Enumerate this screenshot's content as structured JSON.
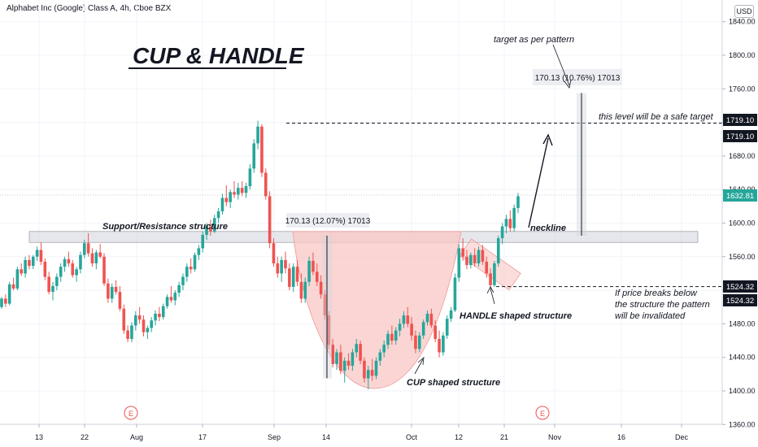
{
  "header": {
    "symbol_line": "Alphabet Inc (Google) Class A, 4h, Cboe BZX"
  },
  "currency": "USD",
  "title": "CUP & HANDLE",
  "annotations": {
    "target": "target as per pattern",
    "safe_target": "this level will be a safe target",
    "support_resistance": "Support/Resistance structure",
    "neckline": "neckline",
    "invalidation": [
      "If price breaks below",
      "the structure the pattern",
      "will be invalidated"
    ],
    "handle": "HANDLE shaped structure",
    "cup": "CUP shaped structure",
    "measure_left": "170.13 (12.07%) 17013",
    "measure_right": "170.13 (10.76%) 17013"
  },
  "price_tags": {
    "safe_target_a": "1719.10",
    "safe_target_b": "1719.10",
    "last": "1632.81",
    "invalid_a": "1524.32",
    "invalid_b": "1524.32"
  },
  "event_marker": "E",
  "chart_data": {
    "type": "candlestick",
    "y_ticks": [
      1360,
      1400,
      1440,
      1480,
      1520,
      1560,
      1600,
      1640,
      1680,
      1720,
      1760,
      1800,
      1840
    ],
    "y_tick_labels": [
      "1360.00",
      "1400.00",
      "1440.00",
      "1480.00",
      "1520.00",
      "1560.00",
      "1600.00",
      "1640.00",
      "1680.00",
      "1720.00",
      "1760.00",
      "1800.00",
      "1840.00"
    ],
    "x_tick_labels": [
      "13",
      "22",
      "Aug",
      "17",
      "Sep",
      "14",
      "Oct",
      "12",
      "21",
      "Nov",
      "16",
      "Dec"
    ],
    "colors": {
      "up": "#26a69a",
      "down": "#ef5350",
      "zone": "#d1d4dc",
      "cup": "#f8c7c4"
    },
    "levels": {
      "safe_target": 1719.1,
      "invalidation": 1524.32,
      "last": 1632.81,
      "resistance_zone": [
        1577,
        1590
      ]
    },
    "candles": [
      [
        1500,
        1512,
        1498,
        1510
      ],
      [
        1510,
        1515,
        1500,
        1504
      ],
      [
        1504,
        1530,
        1502,
        1527
      ],
      [
        1527,
        1535,
        1520,
        1522
      ],
      [
        1522,
        1548,
        1520,
        1545
      ],
      [
        1545,
        1552,
        1537,
        1540
      ],
      [
        1540,
        1560,
        1535,
        1556
      ],
      [
        1556,
        1562,
        1545,
        1549
      ],
      [
        1549,
        1562,
        1545,
        1560
      ],
      [
        1560,
        1572,
        1555,
        1568
      ],
      [
        1568,
        1577,
        1550,
        1554
      ],
      [
        1554,
        1558,
        1532,
        1536
      ],
      [
        1536,
        1542,
        1515,
        1518
      ],
      [
        1518,
        1530,
        1508,
        1525
      ],
      [
        1525,
        1540,
        1520,
        1536
      ],
      [
        1536,
        1552,
        1530,
        1548
      ],
      [
        1548,
        1560,
        1542,
        1557
      ],
      [
        1557,
        1566,
        1548,
        1552
      ],
      [
        1552,
        1556,
        1535,
        1538
      ],
      [
        1538,
        1548,
        1530,
        1545
      ],
      [
        1545,
        1566,
        1540,
        1562
      ],
      [
        1562,
        1580,
        1558,
        1576
      ],
      [
        1576,
        1588,
        1560,
        1564
      ],
      [
        1564,
        1570,
        1548,
        1552
      ],
      [
        1552,
        1568,
        1545,
        1565
      ],
      [
        1565,
        1575,
        1558,
        1560
      ],
      [
        1560,
        1564,
        1525,
        1528
      ],
      [
        1528,
        1534,
        1505,
        1510
      ],
      [
        1510,
        1528,
        1505,
        1524
      ],
      [
        1524,
        1532,
        1515,
        1518
      ],
      [
        1518,
        1525,
        1495,
        1498
      ],
      [
        1498,
        1503,
        1468,
        1472
      ],
      [
        1472,
        1478,
        1458,
        1462
      ],
      [
        1462,
        1482,
        1458,
        1478
      ],
      [
        1478,
        1495,
        1472,
        1490
      ],
      [
        1490,
        1500,
        1480,
        1485
      ],
      [
        1485,
        1490,
        1465,
        1470
      ],
      [
        1470,
        1478,
        1462,
        1475
      ],
      [
        1475,
        1488,
        1470,
        1484
      ],
      [
        1484,
        1496,
        1478,
        1492
      ],
      [
        1492,
        1500,
        1483,
        1488
      ],
      [
        1488,
        1504,
        1485,
        1501
      ],
      [
        1501,
        1515,
        1498,
        1512
      ],
      [
        1512,
        1525,
        1505,
        1508
      ],
      [
        1508,
        1520,
        1502,
        1517
      ],
      [
        1517,
        1530,
        1512,
        1526
      ],
      [
        1526,
        1540,
        1520,
        1536
      ],
      [
        1536,
        1552,
        1530,
        1548
      ],
      [
        1548,
        1558,
        1540,
        1545
      ],
      [
        1545,
        1565,
        1542,
        1562
      ],
      [
        1562,
        1574,
        1556,
        1570
      ],
      [
        1570,
        1590,
        1565,
        1586
      ],
      [
        1586,
        1600,
        1580,
        1596
      ],
      [
        1596,
        1604,
        1585,
        1590
      ],
      [
        1590,
        1610,
        1588,
        1606
      ],
      [
        1606,
        1618,
        1600,
        1614
      ],
      [
        1614,
        1635,
        1610,
        1630
      ],
      [
        1630,
        1645,
        1620,
        1625
      ],
      [
        1625,
        1640,
        1618,
        1637
      ],
      [
        1637,
        1650,
        1630,
        1634
      ],
      [
        1634,
        1648,
        1628,
        1642
      ],
      [
        1642,
        1650,
        1632,
        1636
      ],
      [
        1636,
        1648,
        1630,
        1644
      ],
      [
        1644,
        1670,
        1640,
        1665
      ],
      [
        1665,
        1700,
        1660,
        1695
      ],
      [
        1695,
        1722,
        1688,
        1715
      ],
      [
        1715,
        1718,
        1655,
        1660
      ],
      [
        1660,
        1665,
        1628,
        1632
      ],
      [
        1632,
        1638,
        1570,
        1576
      ],
      [
        1576,
        1582,
        1548,
        1552
      ],
      [
        1552,
        1560,
        1535,
        1540
      ],
      [
        1540,
        1560,
        1530,
        1556
      ],
      [
        1556,
        1566,
        1540,
        1546
      ],
      [
        1546,
        1552,
        1520,
        1524
      ],
      [
        1524,
        1552,
        1518,
        1548
      ],
      [
        1548,
        1556,
        1525,
        1530
      ],
      [
        1530,
        1540,
        1505,
        1510
      ],
      [
        1510,
        1535,
        1505,
        1530
      ],
      [
        1530,
        1560,
        1525,
        1555
      ],
      [
        1555,
        1565,
        1538,
        1542
      ],
      [
        1542,
        1552,
        1525,
        1530
      ],
      [
        1530,
        1538,
        1510,
        1515
      ],
      [
        1515,
        1520,
        1485,
        1490
      ],
      [
        1490,
        1495,
        1450,
        1455
      ],
      [
        1455,
        1462,
        1428,
        1432
      ],
      [
        1432,
        1450,
        1425,
        1446
      ],
      [
        1446,
        1455,
        1420,
        1424
      ],
      [
        1424,
        1440,
        1410,
        1436
      ],
      [
        1436,
        1445,
        1425,
        1430
      ],
      [
        1430,
        1450,
        1424,
        1446
      ],
      [
        1446,
        1462,
        1440,
        1456
      ],
      [
        1456,
        1460,
        1432,
        1436
      ],
      [
        1436,
        1440,
        1410,
        1415
      ],
      [
        1415,
        1430,
        1402,
        1425
      ],
      [
        1425,
        1438,
        1412,
        1418
      ],
      [
        1418,
        1440,
        1414,
        1436
      ],
      [
        1436,
        1450,
        1430,
        1446
      ],
      [
        1446,
        1460,
        1440,
        1455
      ],
      [
        1455,
        1472,
        1450,
        1468
      ],
      [
        1468,
        1478,
        1455,
        1460
      ],
      [
        1460,
        1476,
        1455,
        1472
      ],
      [
        1472,
        1486,
        1465,
        1480
      ],
      [
        1480,
        1495,
        1475,
        1490
      ],
      [
        1490,
        1500,
        1476,
        1480
      ],
      [
        1480,
        1488,
        1460,
        1466
      ],
      [
        1466,
        1472,
        1445,
        1450
      ],
      [
        1450,
        1470,
        1446,
        1466
      ],
      [
        1466,
        1485,
        1462,
        1482
      ],
      [
        1482,
        1496,
        1478,
        1492
      ],
      [
        1492,
        1498,
        1475,
        1478
      ],
      [
        1478,
        1484,
        1458,
        1462
      ],
      [
        1462,
        1472,
        1440,
        1446
      ],
      [
        1446,
        1470,
        1442,
        1466
      ],
      [
        1466,
        1490,
        1462,
        1486
      ],
      [
        1486,
        1500,
        1482,
        1496
      ],
      [
        1496,
        1540,
        1494,
        1535
      ],
      [
        1535,
        1575,
        1530,
        1570
      ],
      [
        1570,
        1582,
        1555,
        1560
      ],
      [
        1560,
        1568,
        1545,
        1550
      ],
      [
        1550,
        1565,
        1546,
        1562
      ],
      [
        1562,
        1570,
        1548,
        1552
      ],
      [
        1552,
        1572,
        1548,
        1568
      ],
      [
        1568,
        1574,
        1550,
        1554
      ],
      [
        1554,
        1560,
        1535,
        1540
      ],
      [
        1540,
        1546,
        1522,
        1526
      ],
      [
        1526,
        1555,
        1524,
        1552
      ],
      [
        1552,
        1585,
        1548,
        1582
      ],
      [
        1582,
        1600,
        1575,
        1596
      ],
      [
        1596,
        1610,
        1588,
        1605
      ],
      [
        1605,
        1615,
        1590,
        1594
      ],
      [
        1594,
        1622,
        1590,
        1618
      ],
      [
        1618,
        1636,
        1612,
        1632
      ]
    ]
  }
}
